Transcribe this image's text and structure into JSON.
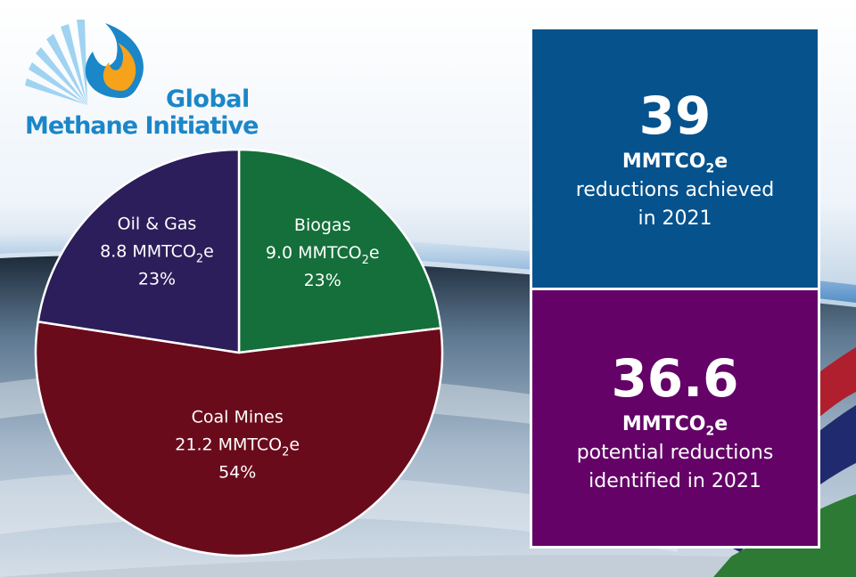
{
  "logo": {
    "line1": "Global",
    "line2": "Methane Initiative",
    "colors": {
      "text": "#1b86c8",
      "flame_outer": "#1b86c8",
      "flame_inner": "#f6a21a",
      "rays": "#9fd3f1"
    }
  },
  "chart_data": {
    "type": "pie",
    "unit_prefix": "MMTCO",
    "unit_subscript": "2",
    "unit_suffix": "e",
    "slices": [
      {
        "label": "Biogas",
        "value": 9.0,
        "value_text": "9.0",
        "percent": 23,
        "percent_text": "23%",
        "color": "#146f3a"
      },
      {
        "label": "Coal Mines",
        "value": 21.2,
        "value_text": "21.2",
        "percent": 54,
        "percent_text": "54%",
        "color": "#6a0b1c"
      },
      {
        "label": "Oil & Gas",
        "value": 8.8,
        "value_text": "8.8",
        "percent": 23,
        "percent_text": "23%",
        "color": "#2b1e5a"
      }
    ]
  },
  "panels": {
    "achieved": {
      "big": "39",
      "unit_prefix": "MMTCO",
      "unit_subscript": "2",
      "unit_suffix": "e",
      "line1": "reductions achieved",
      "line2": "in 2021",
      "color": "#05528d"
    },
    "identified": {
      "big": "36.6",
      "unit_prefix": "MMTCO",
      "unit_subscript": "2",
      "unit_suffix": "e",
      "line1": "potential reductions",
      "line2": "identified in 2021",
      "color": "#640267"
    }
  }
}
